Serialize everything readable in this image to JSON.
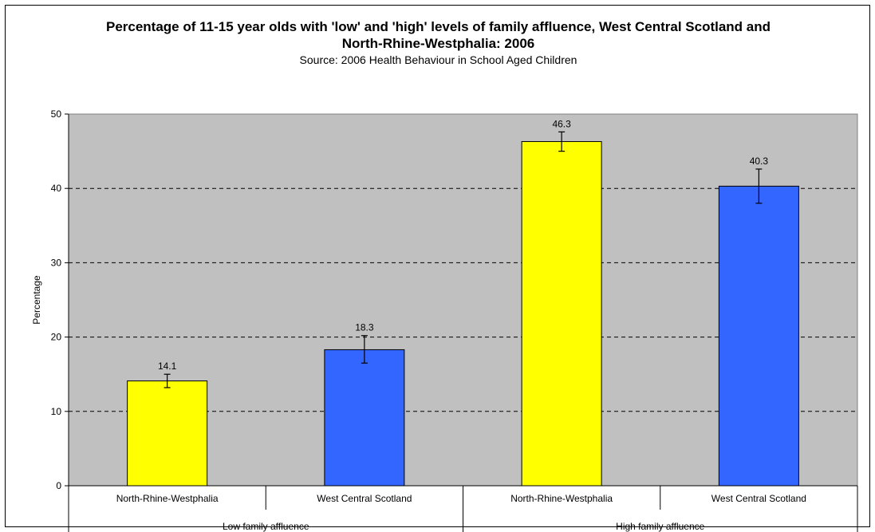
{
  "chart_data": {
    "type": "bar",
    "title": "Percentage of 11-15 year olds with 'low' and 'high' levels of family affluence, West Central Scotland and North-Rhine-Westphalia: 2006",
    "subtitle": "Source: 2006 Health Behaviour in School Aged Children",
    "ylabel": "Percentage",
    "xlabel": "",
    "ylim": [
      0,
      50
    ],
    "yticks": [
      0,
      10,
      20,
      30,
      40,
      50
    ],
    "grid": "horizontal dashed",
    "groups": [
      "Low family affluence",
      "High family affluence"
    ],
    "categories": [
      "North-Rhine-Westphalia",
      "West Central Scotland",
      "North-Rhine-Westphalia",
      "West Central Scotland"
    ],
    "values": [
      14.1,
      18.3,
      46.3,
      40.3
    ],
    "value_labels": [
      "14.1",
      "18.3",
      "46.3",
      "40.3"
    ],
    "error_low": [
      13.2,
      16.5,
      45.0,
      38.0
    ],
    "error_high": [
      15.0,
      20.2,
      47.6,
      42.6
    ]
  },
  "colors": {
    "plot_background": "#c0c0c0",
    "north_rhine_westphalia": "#ffff00",
    "west_central_scotland": "#3366ff",
    "gridline": "#000000"
  }
}
